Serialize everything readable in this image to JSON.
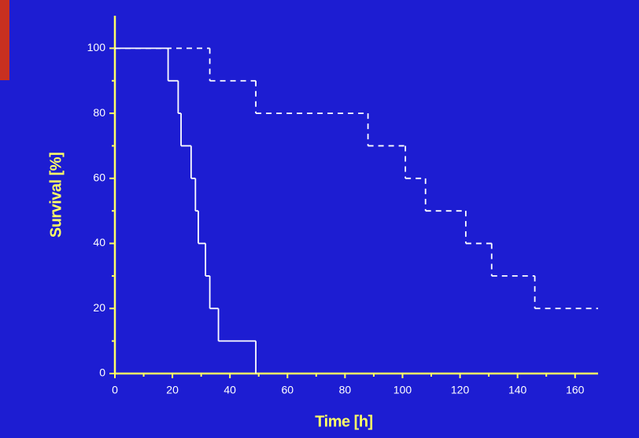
{
  "chart_data": {
    "type": "step",
    "x_label": "Time [h]",
    "y_label": "Survival [%]",
    "xlim": [
      0,
      168
    ],
    "ylim": [
      0,
      110
    ],
    "xticks": [
      0,
      20,
      40,
      60,
      80,
      100,
      120,
      140,
      160
    ],
    "yticks": [
      0,
      20,
      40,
      60,
      80,
      100
    ],
    "series": [
      {
        "color": "#ffffff",
        "dashed": false,
        "x": [
          0,
          18.5,
          22,
          23,
          26.5,
          28,
          29,
          31.5,
          33,
          36,
          49
        ],
        "values": [
          100,
          90,
          80,
          70,
          60,
          50,
          40,
          30,
          20,
          10,
          0
        ]
      },
      {
        "color": "#ffffff",
        "dashed": true,
        "x": [
          0,
          33,
          49,
          88,
          101,
          108,
          122,
          131,
          146,
          168
        ],
        "values": [
          100,
          90,
          80,
          70,
          60,
          50,
          40,
          30,
          20,
          20
        ]
      }
    ],
    "axis_color": "#ffff66"
  }
}
